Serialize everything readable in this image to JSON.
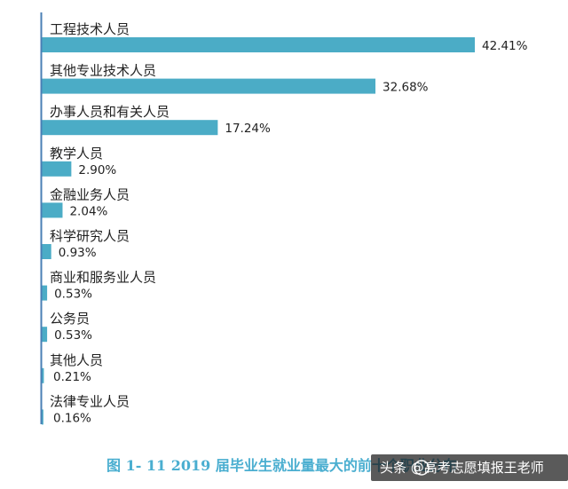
{
  "chart_data": {
    "type": "bar",
    "orientation": "horizontal",
    "categories": [
      "工程技术人员",
      "其他专业技术人员",
      "办事人员和有关人员",
      "教学人员",
      "金融业务人员",
      "科学研究人员",
      "商业和服务业人员",
      "公务员",
      "其他人员",
      "法律专业人员"
    ],
    "values": [
      42.41,
      32.68,
      17.24,
      2.9,
      2.04,
      0.93,
      0.53,
      0.53,
      0.21,
      0.16
    ],
    "value_labels": [
      "42.41%",
      "32.68%",
      "17.24%",
      "2.90%",
      "2.04%",
      "0.93%",
      "0.53%",
      "0.53%",
      "0.21%",
      "0.16%"
    ],
    "xlim": [
      0,
      42.41
    ],
    "grid": false,
    "legend": "none",
    "bar_color": "#4bacc6",
    "axis_color": "#4a7fb5"
  },
  "caption": "图 1- 11    2019 届毕业生就业量最大的前十个职业分布",
  "caption_color": "#4aaed0",
  "watermark": "头条 @高考志愿填报王老师"
}
